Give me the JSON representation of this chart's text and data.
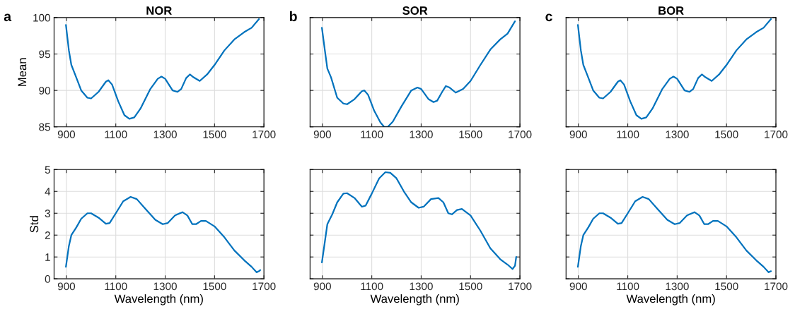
{
  "chart_data": [
    {
      "type": "line",
      "title": "NOR",
      "ylabel": "Mean",
      "annotations": [
        "a"
      ],
      "grid": true,
      "xlim": [
        850,
        1700
      ],
      "xticks": [
        900,
        1100,
        1300,
        1500,
        1700
      ],
      "ylim": [
        85,
        100
      ],
      "yticks": [
        85,
        90,
        95,
        100
      ],
      "series": [
        {
          "color": "#0072bd",
          "x": [
            898,
            910,
            920,
            935,
            960,
            985,
            1000,
            1030,
            1060,
            1070,
            1085,
            1110,
            1135,
            1155,
            1175,
            1200,
            1240,
            1270,
            1285,
            1300,
            1330,
            1350,
            1365,
            1385,
            1400,
            1415,
            1440,
            1470,
            1500,
            1540,
            1580,
            1620,
            1650,
            1680
          ],
          "values": [
            99.0,
            95.5,
            93.5,
            92.2,
            90.0,
            89.0,
            88.9,
            89.8,
            91.2,
            91.4,
            90.8,
            88.5,
            86.6,
            86.1,
            86.3,
            87.5,
            90.2,
            91.6,
            91.9,
            91.6,
            90.0,
            89.8,
            90.2,
            91.7,
            92.2,
            91.8,
            91.3,
            92.2,
            93.5,
            95.5,
            97.0,
            98.0,
            98.6,
            99.8
          ]
        }
      ]
    },
    {
      "type": "line",
      "title": "SOR",
      "annotations": [
        "b"
      ],
      "grid": true,
      "tick_labels": "x",
      "xlim": [
        850,
        1700
      ],
      "xticks": [
        900,
        1100,
        1300,
        1500,
        1700
      ],
      "ylim": [
        85,
        100
      ],
      "yticks": [
        85,
        90,
        95,
        100
      ],
      "series": [
        {
          "color": "#0072bd",
          "x": [
            898,
            910,
            920,
            935,
            960,
            985,
            1000,
            1030,
            1060,
            1070,
            1085,
            1110,
            1135,
            1150,
            1165,
            1185,
            1220,
            1260,
            1285,
            1300,
            1330,
            1350,
            1365,
            1385,
            1400,
            1415,
            1440,
            1470,
            1500,
            1540,
            1580,
            1620,
            1650,
            1680
          ],
          "values": [
            98.6,
            95.5,
            93.0,
            91.8,
            89.0,
            88.2,
            88.1,
            88.8,
            89.9,
            90.0,
            89.4,
            87.2,
            85.6,
            85.0,
            85.0,
            85.7,
            87.8,
            90.0,
            90.4,
            90.2,
            88.8,
            88.4,
            88.6,
            89.8,
            90.6,
            90.4,
            89.7,
            90.2,
            91.3,
            93.5,
            95.6,
            97.0,
            97.8,
            99.5
          ]
        }
      ]
    },
    {
      "type": "line",
      "title": "BOR",
      "annotations": [
        "c"
      ],
      "grid": true,
      "tick_labels": "x",
      "xlim": [
        850,
        1700
      ],
      "xticks": [
        900,
        1100,
        1300,
        1500,
        1700
      ],
      "ylim": [
        85,
        100
      ],
      "yticks": [
        85,
        90,
        95,
        100
      ],
      "series": [
        {
          "color": "#0072bd",
          "x": [
            898,
            910,
            920,
            935,
            960,
            985,
            1000,
            1030,
            1060,
            1070,
            1085,
            1110,
            1135,
            1155,
            1175,
            1200,
            1240,
            1270,
            1285,
            1300,
            1330,
            1350,
            1365,
            1385,
            1400,
            1415,
            1440,
            1470,
            1500,
            1540,
            1580,
            1620,
            1650,
            1680
          ],
          "values": [
            99.0,
            95.5,
            93.5,
            92.2,
            90.0,
            89.0,
            88.9,
            89.8,
            91.2,
            91.4,
            90.8,
            88.5,
            86.6,
            86.1,
            86.3,
            87.5,
            90.2,
            91.6,
            91.9,
            91.6,
            90.0,
            89.8,
            90.2,
            91.7,
            92.2,
            91.8,
            91.3,
            92.2,
            93.5,
            95.5,
            97.0,
            98.0,
            98.6,
            99.8
          ]
        }
      ]
    },
    {
      "type": "line",
      "xlabel": "Wavelength (nm)",
      "ylabel": "Std",
      "grid": true,
      "xlim": [
        850,
        1700
      ],
      "xticks": [
        900,
        1100,
        1300,
        1500,
        1700
      ],
      "ylim": [
        0,
        5
      ],
      "yticks": [
        0,
        1,
        2,
        3,
        4,
        5
      ],
      "series": [
        {
          "color": "#0072bd",
          "x": [
            898,
            910,
            920,
            940,
            960,
            985,
            1000,
            1030,
            1060,
            1075,
            1100,
            1130,
            1160,
            1185,
            1220,
            1260,
            1290,
            1310,
            1340,
            1370,
            1390,
            1410,
            1425,
            1445,
            1465,
            1500,
            1540,
            1580,
            1620,
            1650,
            1670,
            1680,
            1685
          ],
          "values": [
            0.55,
            1.5,
            2.0,
            2.35,
            2.75,
            3.0,
            3.0,
            2.8,
            2.52,
            2.55,
            3.0,
            3.55,
            3.75,
            3.65,
            3.2,
            2.7,
            2.5,
            2.55,
            2.9,
            3.05,
            2.9,
            2.5,
            2.5,
            2.65,
            2.65,
            2.4,
            1.9,
            1.3,
            0.85,
            0.55,
            0.3,
            0.35,
            0.4
          ]
        }
      ]
    },
    {
      "type": "line",
      "xlabel": "Wavelength (nm)",
      "grid": true,
      "tick_labels": "x",
      "xlim": [
        850,
        1700
      ],
      "xticks": [
        900,
        1100,
        1300,
        1500,
        1700
      ],
      "ylim": [
        0,
        5
      ],
      "yticks": [
        0,
        1,
        2,
        3,
        4,
        5
      ],
      "series": [
        {
          "color": "#0072bd",
          "x": [
            898,
            910,
            920,
            940,
            960,
            985,
            1000,
            1030,
            1060,
            1075,
            1100,
            1130,
            1155,
            1175,
            1200,
            1230,
            1260,
            1290,
            1310,
            1340,
            1370,
            1390,
            1410,
            1425,
            1445,
            1465,
            1500,
            1540,
            1580,
            1620,
            1650,
            1670,
            1680,
            1685
          ],
          "values": [
            0.75,
            1.7,
            2.5,
            2.95,
            3.5,
            3.9,
            3.92,
            3.7,
            3.3,
            3.35,
            3.9,
            4.6,
            4.88,
            4.85,
            4.6,
            4.0,
            3.5,
            3.25,
            3.3,
            3.65,
            3.7,
            3.5,
            3.0,
            2.95,
            3.15,
            3.2,
            2.9,
            2.2,
            1.4,
            0.9,
            0.65,
            0.45,
            0.6,
            1.0
          ]
        }
      ]
    },
    {
      "type": "line",
      "xlabel": "Wavelength (nm)",
      "grid": true,
      "tick_labels": "x",
      "xlim": [
        850,
        1700
      ],
      "xticks": [
        900,
        1100,
        1300,
        1500,
        1700
      ],
      "ylim": [
        0,
        5
      ],
      "yticks": [
        0,
        1,
        2,
        3,
        4,
        5
      ],
      "series": [
        {
          "color": "#0072bd",
          "x": [
            898,
            910,
            920,
            940,
            960,
            985,
            1000,
            1030,
            1060,
            1075,
            1100,
            1130,
            1160,
            1185,
            1220,
            1260,
            1290,
            1310,
            1340,
            1370,
            1390,
            1410,
            1425,
            1445,
            1465,
            1500,
            1540,
            1580,
            1620,
            1650,
            1670,
            1680
          ],
          "values": [
            0.55,
            1.5,
            2.0,
            2.35,
            2.75,
            3.0,
            3.0,
            2.8,
            2.52,
            2.55,
            3.0,
            3.55,
            3.75,
            3.65,
            3.2,
            2.7,
            2.5,
            2.55,
            2.9,
            3.05,
            2.9,
            2.5,
            2.5,
            2.65,
            2.65,
            2.4,
            1.9,
            1.3,
            0.85,
            0.55,
            0.3,
            0.35
          ]
        }
      ]
    }
  ]
}
